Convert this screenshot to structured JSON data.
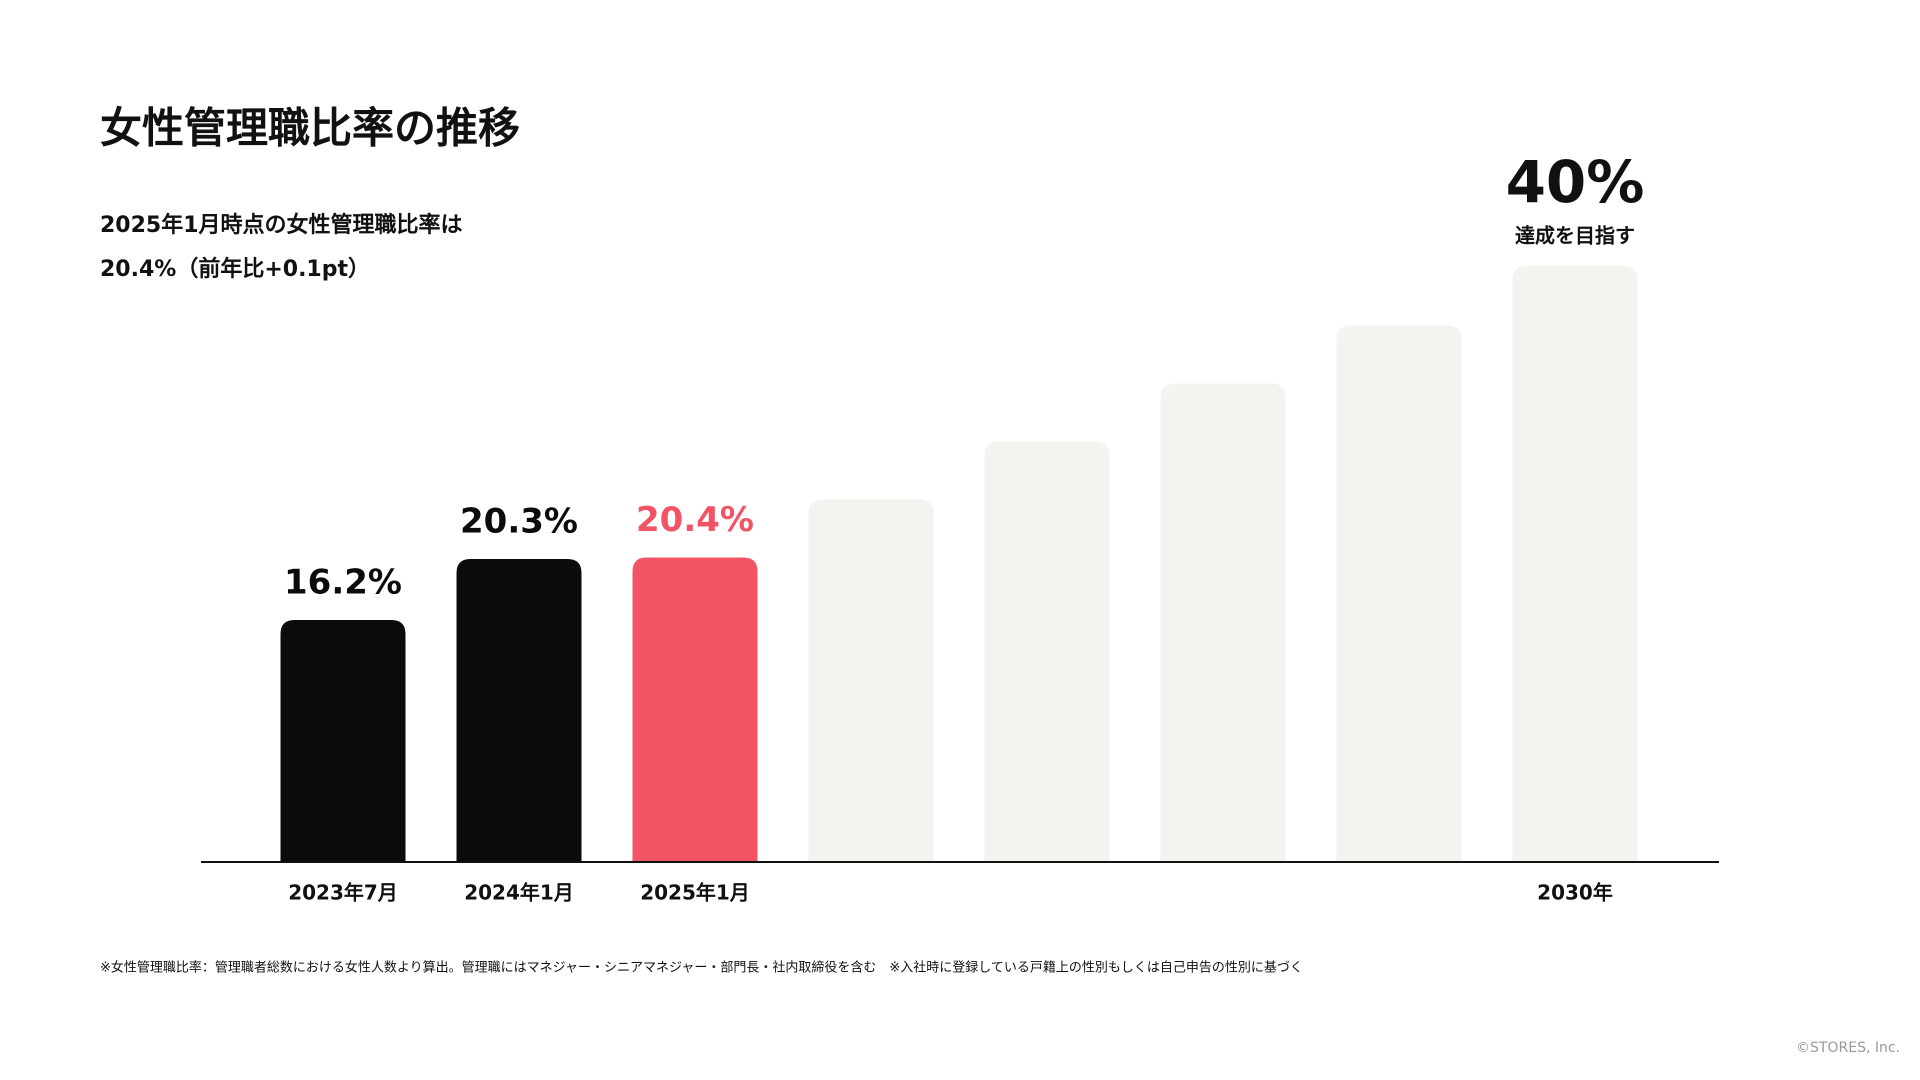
{
  "title": "女性管理職比率の推移",
  "subtitle": [
    "2025年1月時点の女性管理職比率は",
    "20.4%（前年比+0.1pt）"
  ],
  "chart_data": {
    "type": "bar",
    "categories": [
      "2023年7月",
      "2024年1月",
      "2025年1月",
      null,
      null,
      null,
      null,
      "2030年"
    ],
    "values": [
      16.2,
      20.3,
      20.4,
      24.3,
      28.2,
      32.1,
      36.0,
      40
    ],
    "value_labels": [
      "16.2%",
      "20.3%",
      "20.4%",
      null,
      null,
      null,
      null,
      "40%"
    ],
    "colors": [
      "#0b0b0b",
      "#0b0b0b",
      "#f25365",
      "#f3f3f0",
      "#f3f3f0",
      "#f3f3f0",
      "#f3f3f0",
      "#f3f3f0"
    ],
    "annotation": "達成を目指す",
    "ylim": [
      0,
      40
    ]
  },
  "footnote": "※女性管理職比率：管理職者総数における女性人数より算出。管理職にはマネジャー・シニアマネジャー・部門長・社内取締役を含む　※入社時に登録している戸籍上の性別もしくは自己申告の性別に基づく",
  "copyright": "©STORES, Inc."
}
